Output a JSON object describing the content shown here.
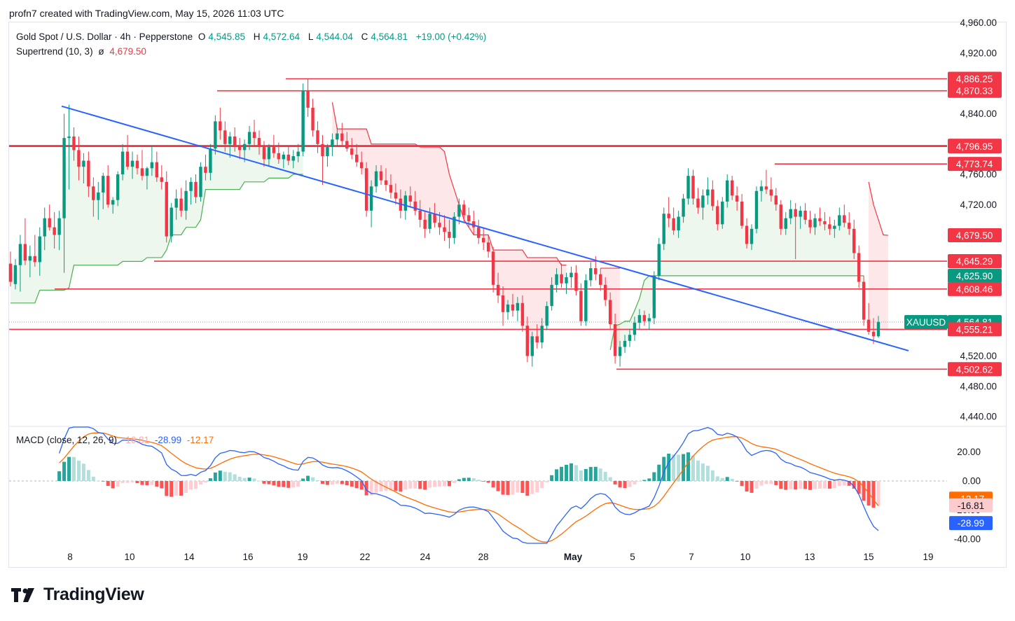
{
  "header": {
    "created_by": "profn7 created with TradingView.com, May 15, 2026 11:03 UTC"
  },
  "legend": {
    "symbol": "Gold Spot / U.S. Dollar · 4h · Pepperstone",
    "open_label": "O",
    "open": "4,545.85",
    "high_label": "H",
    "high": "4,572.64",
    "low_label": "L",
    "low": "4,544.04",
    "close_label": "C",
    "close": "4,564.81",
    "change": "+19.00 (+0.42%)",
    "supertrend_label": "Supertrend (10, 3)",
    "supertrend_symbol": "ø",
    "supertrend_value": "4,679.50",
    "macd_label": "MACD (close, 12, 26, 9)",
    "macd_hist": "-16.81",
    "macd_line": "-28.99",
    "macd_signal": "-12.17"
  },
  "brand": {
    "name": "TradingView"
  },
  "colors": {
    "up": "#089981",
    "down": "#f23645",
    "trendline": "#2962ff",
    "level_line": "#f23645",
    "supertrend_up": "#4caf50",
    "supertrend_down": "#f23645",
    "macd_line": "#2962ff",
    "signal_line": "#ff6d00"
  },
  "chart_data": [
    {
      "type": "candlestick",
      "title": "Gold Spot / U.S. Dollar · 4h · Pepperstone",
      "y_range": [
        4420,
        4960
      ],
      "price_ticks": [
        "4,920.00",
        "4,840.00",
        "4,760.00",
        "4,720.00",
        "4,520.00",
        "4,480.00",
        "4,440.00"
      ],
      "x_labels": [
        "8",
        "10",
        "14",
        "16",
        "19",
        "22",
        "24",
        "28",
        "May",
        "5",
        "7",
        "10",
        "13",
        "15",
        "19"
      ],
      "price_labels": [
        {
          "text": "4,886.25",
          "kind": "level"
        },
        {
          "text": "4,870.33",
          "kind": "level"
        },
        {
          "text": "4,797.77",
          "kind": "level"
        },
        {
          "text": "4,796.95",
          "kind": "level"
        },
        {
          "text": "4,773.74",
          "kind": "level"
        },
        {
          "text": "4,679.50",
          "kind": "supertrend"
        },
        {
          "text": "4,645.29",
          "kind": "level"
        },
        {
          "text": "4,625.90",
          "kind": "supertrend-up"
        },
        {
          "text": "4,608.46",
          "kind": "level"
        },
        {
          "text": "4,564.81",
          "kind": "last"
        },
        {
          "text": "4,555.21",
          "kind": "level"
        },
        {
          "text": "4,502.62",
          "kind": "level"
        }
      ],
      "symbol_tag": "XAUUSD",
      "candles": [
        [
          4642,
          4658,
          4612,
          4618
        ],
        [
          4615,
          4648,
          4608,
          4640
        ],
        [
          4640,
          4680,
          4605,
          4668
        ],
        [
          4668,
          4702,
          4640,
          4646
        ],
        [
          4646,
          4666,
          4624,
          4652
        ],
        [
          4652,
          4680,
          4638,
          4644
        ],
        [
          4644,
          4690,
          4626,
          4678
        ],
        [
          4678,
          4716,
          4660,
          4702
        ],
        [
          4702,
          4720,
          4686,
          4690
        ],
        [
          4690,
          4710,
          4662,
          4680
        ],
        [
          4680,
          4712,
          4660,
          4702
        ],
        [
          4702,
          4840,
          4630,
          4808
        ],
        [
          4808,
          4852,
          4740,
          4810
        ],
        [
          4810,
          4822,
          4778,
          4792
        ],
        [
          4792,
          4810,
          4752,
          4770
        ],
        [
          4770,
          4788,
          4748,
          4778
        ],
        [
          4778,
          4790,
          4730,
          4744
        ],
        [
          4744,
          4756,
          4704,
          4726
        ],
        [
          4726,
          4750,
          4700,
          4736
        ],
        [
          4736,
          4762,
          4714,
          4758
        ],
        [
          4758,
          4772,
          4716,
          4720
        ],
        [
          4720,
          4730,
          4708,
          4726
        ],
        [
          4726,
          4764,
          4718,
          4760
        ],
        [
          4760,
          4800,
          4752,
          4790
        ],
        [
          4790,
          4812,
          4766,
          4770
        ],
        [
          4770,
          4790,
          4754,
          4778
        ],
        [
          4778,
          4786,
          4760,
          4768
        ],
        [
          4768,
          4792,
          4752,
          4758
        ],
        [
          4758,
          4770,
          4740,
          4768
        ],
        [
          4768,
          4798,
          4758,
          4776
        ],
        [
          4776,
          4790,
          4750,
          4756
        ],
        [
          4756,
          4772,
          4740,
          4750
        ],
        [
          4750,
          4764,
          4670,
          4678
        ],
        [
          4678,
          4722,
          4670,
          4716
        ],
        [
          4716,
          4740,
          4700,
          4728
        ],
        [
          4728,
          4742,
          4704,
          4712
        ],
        [
          4712,
          4752,
          4700,
          4738
        ],
        [
          4738,
          4756,
          4720,
          4750
        ],
        [
          4750,
          4760,
          4722,
          4730
        ],
        [
          4730,
          4776,
          4724,
          4770
        ],
        [
          4770,
          4786,
          4752,
          4762
        ],
        [
          4762,
          4800,
          4752,
          4794
        ],
        [
          4794,
          4838,
          4786,
          4830
        ],
        [
          4830,
          4848,
          4806,
          4818
        ],
        [
          4818,
          4830,
          4790,
          4800
        ],
        [
          4800,
          4816,
          4782,
          4810
        ],
        [
          4810,
          4822,
          4790,
          4798
        ],
        [
          4798,
          4808,
          4780,
          4792
        ],
        [
          4792,
          4806,
          4776,
          4800
        ],
        [
          4800,
          4824,
          4792,
          4816
        ],
        [
          4816,
          4832,
          4798,
          4808
        ],
        [
          4808,
          4818,
          4786,
          4796
        ],
        [
          4796,
          4804,
          4770,
          4780
        ],
        [
          4780,
          4800,
          4770,
          4796
        ],
        [
          4796,
          4812,
          4782,
          4788
        ],
        [
          4788,
          4802,
          4774,
          4780
        ],
        [
          4780,
          4790,
          4768,
          4786
        ],
        [
          4786,
          4798,
          4772,
          4778
        ],
        [
          4778,
          4792,
          4768,
          4784
        ],
        [
          4784,
          4800,
          4776,
          4790
        ],
        [
          4790,
          4880,
          4784,
          4870
        ],
        [
          4870,
          4886,
          4836,
          4848
        ],
        [
          4848,
          4860,
          4810,
          4818
        ],
        [
          4818,
          4830,
          4788,
          4800
        ],
        [
          4800,
          4812,
          4746,
          4784
        ],
        [
          4784,
          4800,
          4770,
          4796
        ],
        [
          4796,
          4814,
          4784,
          4806
        ],
        [
          4806,
          4822,
          4796,
          4814
        ],
        [
          4814,
          4828,
          4798,
          4804
        ],
        [
          4804,
          4816,
          4790,
          4794
        ],
        [
          4794,
          4808,
          4780,
          4786
        ],
        [
          4786,
          4800,
          4770,
          4776
        ],
        [
          4776,
          4790,
          4760,
          4768
        ],
        [
          4768,
          4776,
          4704,
          4712
        ],
        [
          4712,
          4752,
          4690,
          4744
        ],
        [
          4744,
          4772,
          4736,
          4764
        ],
        [
          4764,
          4772,
          4746,
          4752
        ],
        [
          4752,
          4768,
          4738,
          4746
        ],
        [
          4746,
          4760,
          4728,
          4736
        ],
        [
          4736,
          4748,
          4720,
          4728
        ],
        [
          4728,
          4740,
          4702,
          4712
        ],
        [
          4712,
          4738,
          4700,
          4732
        ],
        [
          4732,
          4744,
          4716,
          4724
        ],
        [
          4724,
          4738,
          4706,
          4712
        ],
        [
          4712,
          4726,
          4690,
          4700
        ],
        [
          4700,
          4712,
          4676,
          4688
        ],
        [
          4688,
          4716,
          4682,
          4708
        ],
        [
          4708,
          4722,
          4690,
          4696
        ],
        [
          4696,
          4710,
          4680,
          4690
        ],
        [
          4690,
          4706,
          4672,
          4684
        ],
        [
          4684,
          4700,
          4662,
          4676
        ],
        [
          4676,
          4710,
          4668,
          4704
        ],
        [
          4704,
          4728,
          4694,
          4720
        ],
        [
          4720,
          4726,
          4698,
          4706
        ],
        [
          4706,
          4716,
          4690,
          4698
        ],
        [
          4698,
          4712,
          4680,
          4690
        ],
        [
          4690,
          4700,
          4668,
          4676
        ],
        [
          4676,
          4690,
          4660,
          4670
        ],
        [
          4670,
          4680,
          4650,
          4658
        ],
        [
          4658,
          4664,
          4604,
          4614
        ],
        [
          4614,
          4630,
          4590,
          4600
        ],
        [
          4600,
          4612,
          4560,
          4578
        ],
        [
          4578,
          4594,
          4568,
          4588
        ],
        [
          4588,
          4602,
          4572,
          4580
        ],
        [
          4580,
          4598,
          4566,
          4590
        ],
        [
          4590,
          4600,
          4552,
          4560
        ],
        [
          4560,
          4572,
          4512,
          4520
        ],
        [
          4520,
          4552,
          4506,
          4546
        ],
        [
          4546,
          4562,
          4530,
          4538
        ],
        [
          4538,
          4570,
          4530,
          4560
        ],
        [
          4560,
          4592,
          4554,
          4586
        ],
        [
          4586,
          4624,
          4580,
          4614
        ],
        [
          4614,
          4636,
          4604,
          4628
        ],
        [
          4628,
          4642,
          4610,
          4616
        ],
        [
          4616,
          4630,
          4602,
          4624
        ],
        [
          4624,
          4638,
          4610,
          4630
        ],
        [
          4630,
          4640,
          4600,
          4606
        ],
        [
          4606,
          4616,
          4560,
          4566
        ],
        [
          4566,
          4628,
          4560,
          4620
        ],
        [
          4620,
          4644,
          4612,
          4636
        ],
        [
          4636,
          4652,
          4620,
          4628
        ],
        [
          4628,
          4636,
          4606,
          4614
        ],
        [
          4614,
          4624,
          4586,
          4594
        ],
        [
          4594,
          4604,
          4556,
          4562
        ],
        [
          4562,
          4576,
          4510,
          4520
        ],
        [
          4520,
          4540,
          4506,
          4532
        ],
        [
          4532,
          4548,
          4524,
          4540
        ],
        [
          4540,
          4556,
          4532,
          4548
        ],
        [
          4548,
          4572,
          4540,
          4564
        ],
        [
          4564,
          4582,
          4556,
          4574
        ],
        [
          4574,
          4580,
          4560,
          4566
        ],
        [
          4566,
          4576,
          4554,
          4570
        ],
        [
          4570,
          4632,
          4562,
          4626
        ],
        [
          4626,
          4676,
          4620,
          4668
        ],
        [
          4668,
          4716,
          4660,
          4708
        ],
        [
          4708,
          4730,
          4690,
          4702
        ],
        [
          4702,
          4716,
          4680,
          4686
        ],
        [
          4686,
          4712,
          4676,
          4704
        ],
        [
          4704,
          4734,
          4696,
          4728
        ],
        [
          4728,
          4768,
          4720,
          4758
        ],
        [
          4758,
          4766,
          4720,
          4728
        ],
        [
          4728,
          4742,
          4708,
          4716
        ],
        [
          4716,
          4740,
          4700,
          4732
        ],
        [
          4732,
          4756,
          4720,
          4740
        ],
        [
          4740,
          4752,
          4712,
          4718
        ],
        [
          4718,
          4726,
          4686,
          4694
        ],
        [
          4694,
          4730,
          4688,
          4724
        ],
        [
          4724,
          4760,
          4716,
          4752
        ],
        [
          4752,
          4758,
          4726,
          4732
        ],
        [
          4732,
          4744,
          4712,
          4724
        ],
        [
          4724,
          4734,
          4688,
          4692
        ],
        [
          4692,
          4702,
          4662,
          4668
        ],
        [
          4668,
          4694,
          4660,
          4688
        ],
        [
          4688,
          4744,
          4682,
          4738
        ],
        [
          4738,
          4752,
          4724,
          4744
        ],
        [
          4744,
          4766,
          4734,
          4740
        ],
        [
          4740,
          4756,
          4724,
          4732
        ],
        [
          4732,
          4742,
          4712,
          4720
        ],
        [
          4720,
          4726,
          4680,
          4688
        ],
        [
          4688,
          4710,
          4680,
          4702
        ],
        [
          4702,
          4726,
          4694,
          4714
        ],
        [
          4714,
          4722,
          4648,
          4704
        ],
        [
          4704,
          4718,
          4688,
          4712
        ],
        [
          4712,
          4722,
          4694,
          4700
        ],
        [
          4700,
          4712,
          4682,
          4690
        ],
        [
          4690,
          4708,
          4680,
          4702
        ],
        [
          4702,
          4716,
          4692,
          4698
        ],
        [
          4698,
          4710,
          4686,
          4694
        ],
        [
          4694,
          4704,
          4680,
          4688
        ],
        [
          4688,
          4700,
          4676,
          4692
        ],
        [
          4692,
          4716,
          4686,
          4706
        ],
        [
          4706,
          4720,
          4690,
          4696
        ],
        [
          4696,
          4710,
          4680,
          4688
        ],
        [
          4688,
          4700,
          4648,
          4656
        ],
        [
          4656,
          4666,
          4610,
          4618
        ],
        [
          4618,
          4626,
          4560,
          4568
        ],
        [
          4568,
          4590,
          4548,
          4552
        ],
        [
          4552,
          4570,
          4536,
          4546
        ],
        [
          4546,
          4573,
          4544,
          4565
        ]
      ],
      "levels": [
        4886.25,
        4870.33,
        4797.77,
        4796.95,
        4773.74,
        4645.29,
        4608.46,
        4555.21,
        4502.62
      ],
      "trendline": {
        "start": [
          8,
          4850
        ],
        "end": [
          19,
          4527
        ]
      },
      "supertrend": {
        "value": 4679.5,
        "up_value": 4625.9,
        "period": 10,
        "multiplier": 3
      }
    },
    {
      "type": "bar",
      "title": "MACD (close, 12, 26, 9)",
      "y_range": [
        -45,
        40
      ],
      "y_ticks": [
        "20.00",
        "0.00",
        "-40.00"
      ],
      "series": [
        {
          "name": "MACD",
          "value": -28.99
        },
        {
          "name": "Signal",
          "value": -12.17
        },
        {
          "name": "Histogram",
          "value": -16.81
        }
      ]
    }
  ]
}
